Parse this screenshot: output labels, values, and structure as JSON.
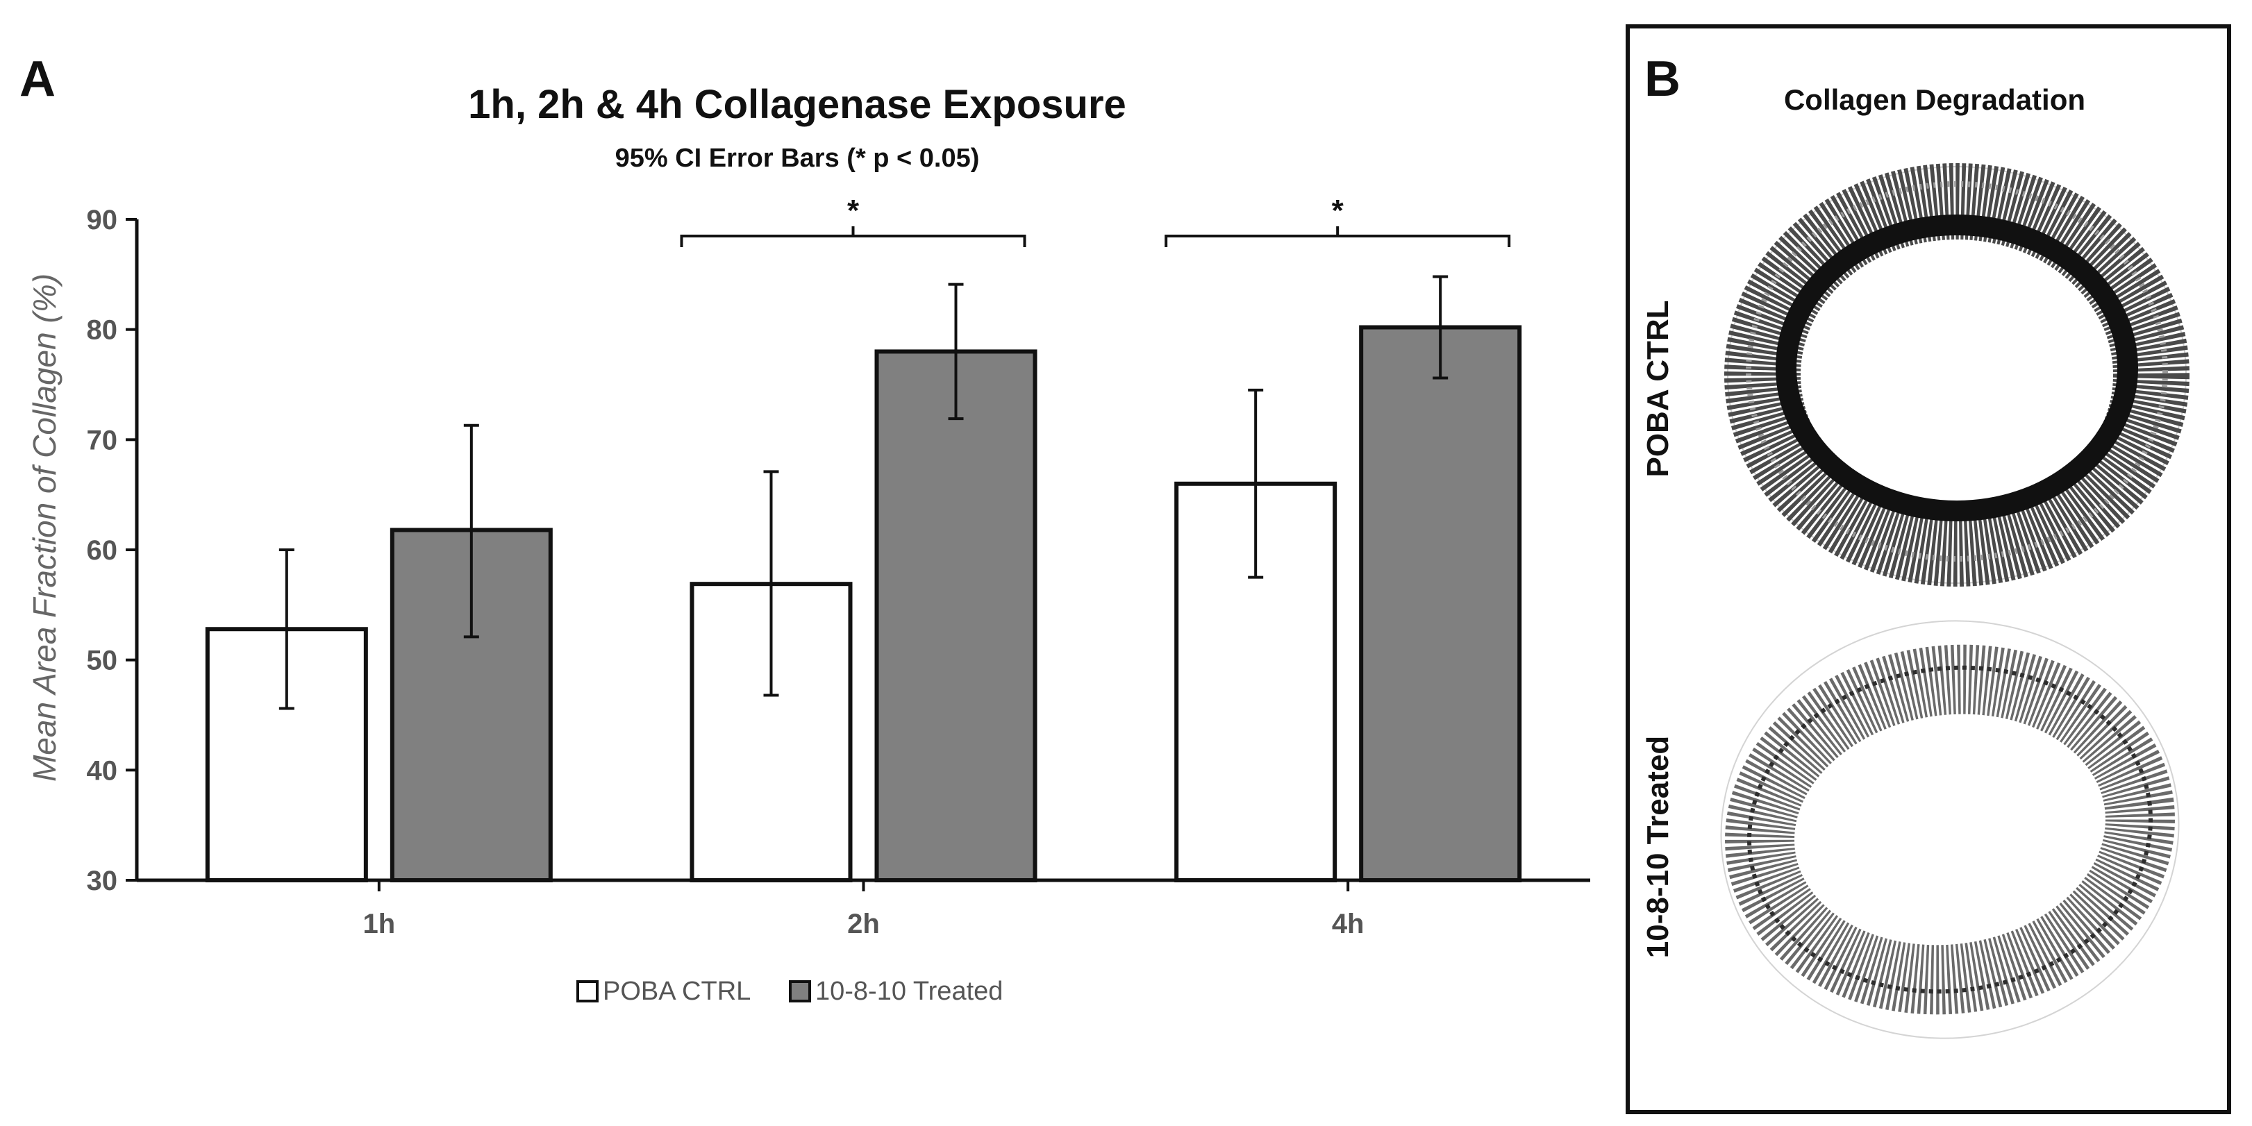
{
  "panel_a": {
    "letter": "A"
  },
  "panel_b": {
    "letter": "B",
    "title": "Collagen Degradation",
    "row_labels": [
      "POBA CTRL",
      "10-8-10 Treated"
    ]
  },
  "chart_data": {
    "type": "bar",
    "title": "1h, 2h & 4h Collagenase Exposure",
    "subtitle": "95% CI Error Bars (* p < 0.05)",
    "xlabel": "",
    "ylabel": "Mean Area Fraction of Collagen (%)",
    "categories": [
      "1h",
      "2h",
      "4h"
    ],
    "ylim": [
      30,
      90
    ],
    "yticks": [
      30,
      40,
      50,
      60,
      70,
      80,
      90
    ],
    "series": [
      {
        "name": "POBA CTRL",
        "color": "#ffffff",
        "values": [
          52.8,
          56.9,
          66.0
        ],
        "ci_low": [
          45.6,
          46.8,
          57.5
        ],
        "ci_high": [
          60.0,
          67.1,
          74.5
        ]
      },
      {
        "name": "10-8-10 Treated",
        "color": "#808080",
        "values": [
          61.8,
          78.0,
          80.2
        ],
        "ci_low": [
          52.1,
          71.9,
          75.6
        ],
        "ci_high": [
          71.3,
          84.1,
          84.8
        ]
      }
    ],
    "significance": [
      {
        "category": "1h",
        "label": ""
      },
      {
        "category": "2h",
        "label": "*"
      },
      {
        "category": "4h",
        "label": "*"
      }
    ],
    "legend_position": "bottom-center"
  }
}
